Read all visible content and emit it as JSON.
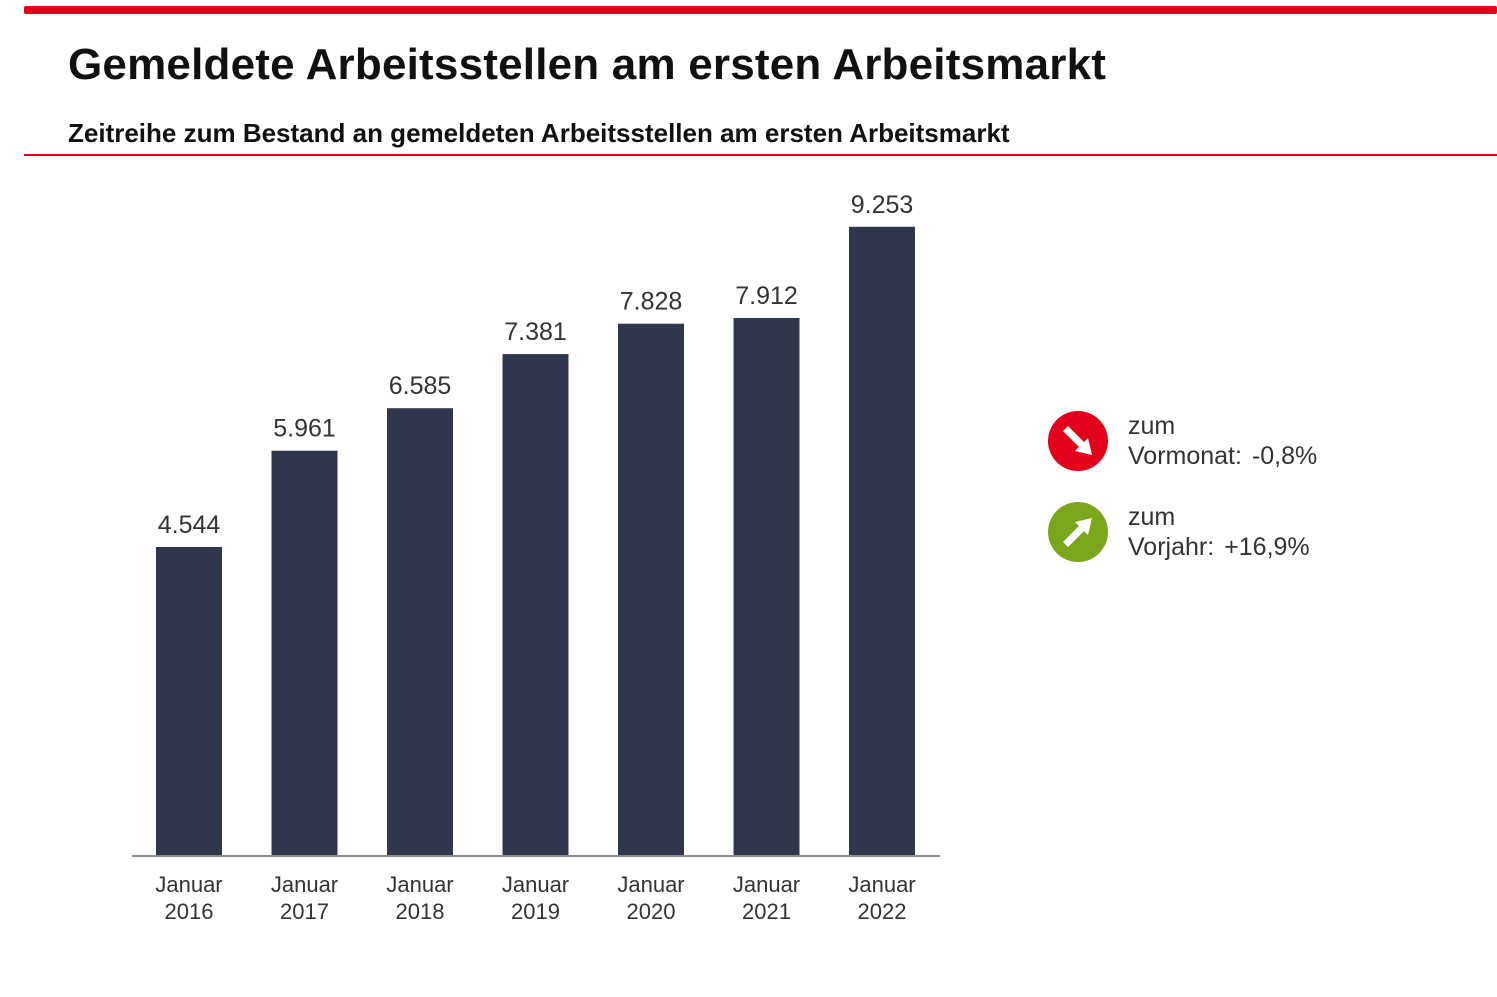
{
  "header": {
    "title": "Gemeldete Arbeitsstellen am ersten Arbeitsmarkt",
    "subtitle": "Zeitreihe zum Bestand an gemeldeten Arbeitsstellen am ersten Arbeitsmarkt"
  },
  "chart_data": {
    "type": "bar",
    "categories": [
      [
        "Januar",
        "2016"
      ],
      [
        "Januar",
        "2017"
      ],
      [
        "Januar",
        "2018"
      ],
      [
        "Januar",
        "2019"
      ],
      [
        "Januar",
        "2020"
      ],
      [
        "Januar",
        "2021"
      ],
      [
        "Januar",
        "2022"
      ]
    ],
    "values": [
      4544,
      5961,
      6585,
      7381,
      7828,
      7912,
      9253
    ],
    "value_labels": [
      "4.544",
      "5.961",
      "6.585",
      "7.381",
      "7.828",
      "7.912",
      "9.253"
    ],
    "ylim": [
      0,
      10000
    ],
    "grid": false,
    "bar_color": "#30374d",
    "axis_color": "#8c8c8c",
    "label_color": "#333333"
  },
  "legend": {
    "month": {
      "line1": "zum",
      "line2": "Vormonat:",
      "value": "-0,8%",
      "icon": "arrow-down-right-icon",
      "color": "#e2001a"
    },
    "year": {
      "line1": "zum",
      "line2": "Vorjahr:",
      "value": "+16,9%",
      "icon": "arrow-up-right-icon",
      "color": "#7aa61c"
    }
  },
  "colors": {
    "accent": "#e2001a"
  }
}
